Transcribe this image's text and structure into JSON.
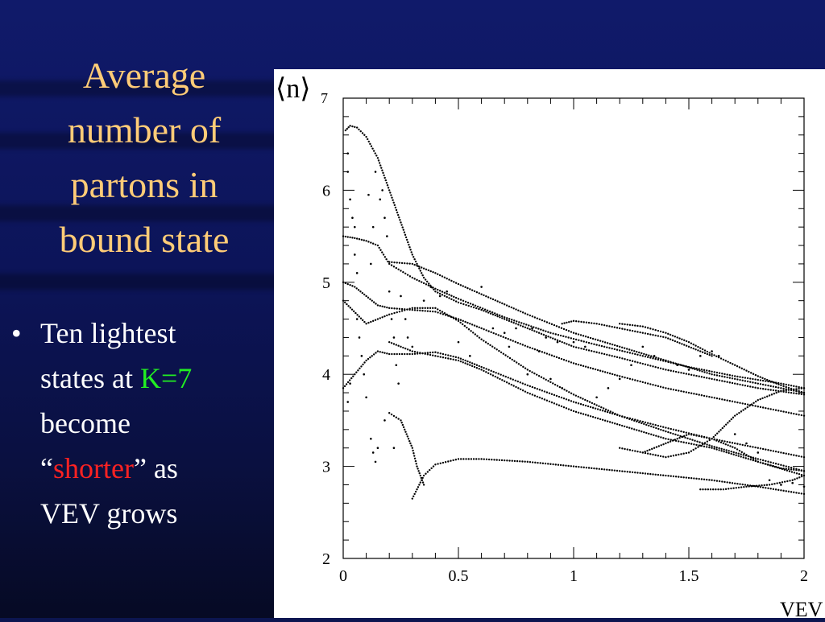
{
  "slide": {
    "title_lines": [
      "Average",
      "number of",
      "partons in",
      "bound state"
    ],
    "bullet_marker": "•",
    "bullet": {
      "line1": "Ten lightest",
      "line2_prefix": "states at ",
      "line2_highlight": "K=7",
      "line3": "become",
      "line4_open_quote": "“",
      "line4_highlight": "shorter",
      "line4_close": "” as",
      "line5": "VEV grows"
    },
    "colors": {
      "title": "#ffcc77",
      "body_text": "#ffffff",
      "highlight_green": "#22ee22",
      "highlight_red": "#ff2222",
      "background": "#0c1550"
    }
  },
  "chart_data": {
    "type": "scatter",
    "ylabel_main": "⟨n⟩",
    "ylabel_sub": "7",
    "xlabel": "VEV",
    "xlim": [
      0,
      2
    ],
    "ylim": [
      2,
      7
    ],
    "x_ticks": [
      "0",
      "0.5",
      "1",
      "1.5",
      "2"
    ],
    "y_ticks": [
      "2",
      "3",
      "4",
      "5",
      "6"
    ],
    "grid": false,
    "marker": "dot",
    "series": [
      {
        "points": [
          [
            0.01,
            6.65
          ],
          [
            0.03,
            6.7
          ],
          [
            0.06,
            6.68
          ],
          [
            0.1,
            6.58
          ],
          [
            0.15,
            6.35
          ],
          [
            0.2,
            6.0
          ],
          [
            0.25,
            5.65
          ],
          [
            0.3,
            5.3
          ],
          [
            0.35,
            5.05
          ],
          [
            0.4,
            4.9
          ],
          [
            0.5,
            4.78
          ],
          [
            0.6,
            4.7
          ],
          [
            0.7,
            4.6
          ],
          [
            0.8,
            4.5
          ],
          [
            0.9,
            4.4
          ],
          [
            1.0,
            4.3
          ],
          [
            1.2,
            4.18
          ],
          [
            1.4,
            4.05
          ],
          [
            1.6,
            3.95
          ],
          [
            1.8,
            3.85
          ],
          [
            2.0,
            3.78
          ]
        ]
      },
      {
        "points": [
          [
            0.0,
            5.5
          ],
          [
            0.05,
            5.48
          ],
          [
            0.1,
            5.45
          ],
          [
            0.15,
            5.4
          ],
          [
            0.2,
            5.2
          ],
          [
            0.3,
            5.05
          ],
          [
            0.4,
            4.93
          ],
          [
            0.5,
            4.82
          ],
          [
            0.7,
            4.62
          ],
          [
            0.9,
            4.45
          ],
          [
            1.1,
            4.32
          ],
          [
            1.3,
            4.2
          ],
          [
            1.5,
            4.08
          ],
          [
            1.7,
            3.98
          ],
          [
            1.9,
            3.9
          ],
          [
            2.0,
            3.85
          ]
        ]
      },
      {
        "points": [
          [
            0.2,
            5.22
          ],
          [
            0.3,
            5.2
          ],
          [
            0.4,
            5.1
          ],
          [
            0.5,
            4.98
          ],
          [
            0.6,
            4.87
          ],
          [
            0.8,
            4.65
          ],
          [
            1.0,
            4.45
          ],
          [
            1.2,
            4.3
          ],
          [
            1.4,
            4.15
          ],
          [
            1.6,
            4.0
          ],
          [
            1.8,
            3.9
          ],
          [
            2.0,
            3.8
          ]
        ]
      },
      {
        "points": [
          [
            0.0,
            5.0
          ],
          [
            0.05,
            4.95
          ],
          [
            0.1,
            4.85
          ],
          [
            0.15,
            4.75
          ],
          [
            0.2,
            4.72
          ],
          [
            0.3,
            4.7
          ],
          [
            0.4,
            4.68
          ],
          [
            0.5,
            4.6
          ],
          [
            0.6,
            4.5
          ],
          [
            0.8,
            4.3
          ],
          [
            1.0,
            4.12
          ],
          [
            1.2,
            3.98
          ],
          [
            1.4,
            3.85
          ],
          [
            1.6,
            3.75
          ],
          [
            1.8,
            3.65
          ],
          [
            2.0,
            3.55
          ]
        ]
      },
      {
        "points": [
          [
            0.0,
            4.8
          ],
          [
            0.1,
            4.55
          ],
          [
            0.2,
            4.65
          ],
          [
            0.3,
            4.72
          ],
          [
            0.4,
            4.72
          ],
          [
            0.5,
            4.58
          ],
          [
            0.6,
            4.38
          ],
          [
            0.8,
            4.05
          ],
          [
            1.0,
            3.78
          ],
          [
            1.2,
            3.55
          ],
          [
            1.4,
            3.38
          ],
          [
            1.6,
            3.22
          ],
          [
            1.8,
            3.08
          ],
          [
            2.0,
            2.95
          ]
        ]
      },
      {
        "points": [
          [
            0.0,
            3.85
          ],
          [
            0.05,
            4.0
          ],
          [
            0.1,
            4.15
          ],
          [
            0.15,
            4.25
          ],
          [
            0.2,
            4.22
          ],
          [
            0.3,
            4.22
          ],
          [
            0.4,
            4.24
          ],
          [
            0.5,
            4.18
          ],
          [
            0.6,
            4.08
          ],
          [
            0.8,
            3.88
          ],
          [
            1.0,
            3.7
          ],
          [
            1.2,
            3.55
          ],
          [
            1.4,
            3.42
          ],
          [
            1.6,
            3.3
          ],
          [
            1.8,
            3.2
          ],
          [
            2.0,
            3.1
          ]
        ]
      },
      {
        "points": [
          [
            0.2,
            4.35
          ],
          [
            0.3,
            4.25
          ],
          [
            0.4,
            4.2
          ],
          [
            0.5,
            4.15
          ],
          [
            0.6,
            4.05
          ],
          [
            0.8,
            3.8
          ],
          [
            1.0,
            3.6
          ],
          [
            1.2,
            3.45
          ],
          [
            1.4,
            3.3
          ],
          [
            1.6,
            3.2
          ],
          [
            1.8,
            3.05
          ],
          [
            2.0,
            2.9
          ]
        ]
      },
      {
        "points": [
          [
            0.3,
            2.65
          ],
          [
            0.35,
            2.9
          ],
          [
            0.4,
            3.02
          ],
          [
            0.5,
            3.08
          ],
          [
            0.6,
            3.08
          ],
          [
            0.8,
            3.05
          ],
          [
            1.0,
            3.0
          ],
          [
            1.2,
            2.95
          ],
          [
            1.4,
            2.9
          ],
          [
            1.6,
            2.85
          ],
          [
            1.8,
            2.78
          ],
          [
            2.0,
            2.7
          ]
        ]
      },
      {
        "points": [
          [
            0.2,
            3.58
          ],
          [
            0.25,
            3.5
          ],
          [
            0.3,
            3.2
          ],
          [
            0.32,
            3.0
          ],
          [
            0.35,
            2.8
          ]
        ]
      },
      {
        "points": [
          [
            1.2,
            4.55
          ],
          [
            1.3,
            4.52
          ],
          [
            1.4,
            4.45
          ],
          [
            1.5,
            4.35
          ],
          [
            1.6,
            4.22
          ],
          [
            1.7,
            4.1
          ],
          [
            1.8,
            3.98
          ],
          [
            1.9,
            3.88
          ],
          [
            2.0,
            3.8
          ]
        ]
      },
      {
        "points": [
          [
            0.95,
            4.55
          ],
          [
            1.0,
            4.58
          ],
          [
            1.1,
            4.55
          ],
          [
            1.2,
            4.5
          ],
          [
            1.3,
            4.45
          ],
          [
            1.4,
            4.4
          ],
          [
            1.5,
            4.3
          ],
          [
            1.6,
            4.2
          ]
        ]
      },
      {
        "points": [
          [
            1.2,
            3.2
          ],
          [
            1.4,
            3.1
          ],
          [
            1.5,
            3.15
          ],
          [
            1.6,
            3.3
          ],
          [
            1.7,
            3.55
          ],
          [
            1.8,
            3.72
          ],
          [
            1.9,
            3.82
          ],
          [
            2.0,
            3.85
          ]
        ]
      },
      {
        "points": [
          [
            1.3,
            3.15
          ],
          [
            1.4,
            3.25
          ],
          [
            1.5,
            3.35
          ],
          [
            1.6,
            3.3
          ],
          [
            1.7,
            3.2
          ],
          [
            1.8,
            3.05
          ],
          [
            1.9,
            2.98
          ],
          [
            2.0,
            2.95
          ]
        ]
      },
      {
        "points": [
          [
            1.55,
            2.75
          ],
          [
            1.65,
            2.75
          ],
          [
            1.75,
            2.78
          ],
          [
            1.85,
            2.8
          ],
          [
            1.95,
            2.85
          ],
          [
            2.0,
            2.9
          ]
        ]
      }
    ],
    "scatter_points": [
      [
        0.02,
        6.4
      ],
      [
        0.02,
        6.2
      ],
      [
        0.03,
        5.9
      ],
      [
        0.04,
        5.7
      ],
      [
        0.05,
        5.6
      ],
      [
        0.05,
        5.3
      ],
      [
        0.06,
        5.1
      ],
      [
        0.06,
        4.6
      ],
      [
        0.07,
        4.4
      ],
      [
        0.08,
        4.2
      ],
      [
        0.09,
        4.0
      ],
      [
        0.1,
        3.75
      ],
      [
        0.12,
        3.3
      ],
      [
        0.13,
        3.15
      ],
      [
        0.14,
        3.05
      ],
      [
        0.15,
        3.2
      ],
      [
        0.16,
        5.9
      ],
      [
        0.14,
        6.2
      ],
      [
        0.17,
        6.0
      ],
      [
        0.18,
        5.7
      ],
      [
        0.19,
        5.5
      ],
      [
        0.11,
        5.95
      ],
      [
        0.13,
        5.6
      ],
      [
        0.12,
        5.2
      ],
      [
        0.2,
        4.9
      ],
      [
        0.21,
        4.6
      ],
      [
        0.22,
        4.4
      ],
      [
        0.23,
        4.1
      ],
      [
        0.24,
        3.9
      ],
      [
        0.25,
        4.85
      ],
      [
        0.27,
        4.6
      ],
      [
        0.28,
        4.4
      ],
      [
        0.3,
        4.3
      ],
      [
        0.35,
        4.8
      ],
      [
        0.38,
        4.95
      ],
      [
        0.42,
        4.85
      ],
      [
        0.45,
        4.9
      ],
      [
        0.5,
        4.35
      ],
      [
        0.55,
        4.2
      ],
      [
        0.6,
        4.95
      ],
      [
        0.65,
        4.5
      ],
      [
        0.7,
        4.45
      ],
      [
        0.72,
        4.3
      ],
      [
        0.75,
        4.5
      ],
      [
        0.8,
        4.0
      ],
      [
        0.82,
        4.5
      ],
      [
        0.85,
        4.25
      ],
      [
        0.88,
        4.4
      ],
      [
        0.9,
        3.95
      ],
      [
        0.93,
        4.35
      ],
      [
        0.95,
        3.85
      ],
      [
        1.0,
        4.35
      ],
      [
        1.05,
        4.3
      ],
      [
        1.1,
        3.75
      ],
      [
        1.15,
        3.85
      ],
      [
        1.2,
        3.95
      ],
      [
        1.25,
        4.1
      ],
      [
        1.3,
        4.3
      ],
      [
        1.35,
        4.2
      ],
      [
        1.4,
        4.15
      ],
      [
        1.45,
        4.1
      ],
      [
        1.5,
        4.05
      ],
      [
        1.55,
        4.2
      ],
      [
        1.6,
        4.25
      ],
      [
        1.63,
        4.2
      ],
      [
        1.7,
        3.35
      ],
      [
        1.75,
        3.25
      ],
      [
        1.8,
        3.15
      ],
      [
        1.85,
        2.85
      ],
      [
        1.9,
        2.8
      ],
      [
        1.95,
        2.82
      ],
      [
        2.0,
        2.78
      ],
      [
        0.18,
        3.5
      ],
      [
        0.22,
        3.2
      ],
      [
        0.02,
        3.7
      ],
      [
        0.03,
        3.9
      ]
    ]
  }
}
